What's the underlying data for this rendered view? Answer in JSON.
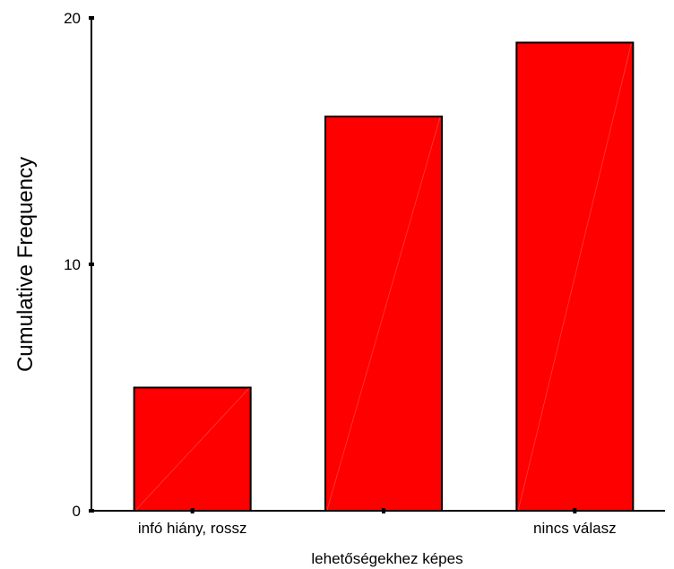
{
  "chart_data": {
    "type": "bar",
    "categories": [
      "infó hiány, rossz",
      "",
      "nincs válasz"
    ],
    "values": [
      5,
      16,
      19
    ],
    "xlabel": "lehetőségekhez képes",
    "ylabel": "Cumulative Frequency",
    "ylim": [
      0,
      20
    ],
    "yticks": [
      0,
      10,
      20
    ],
    "grid": false,
    "legend": "none",
    "bar_color": "#ff0000",
    "bar_edge_color": "#000000"
  }
}
